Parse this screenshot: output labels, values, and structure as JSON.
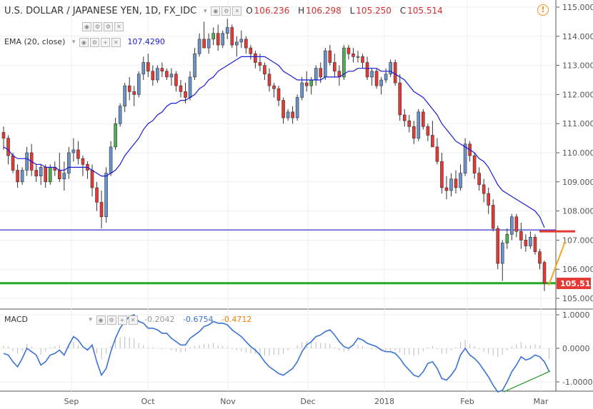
{
  "header": {
    "symbol": "U.S. DOLLAR / JAPANESE YEN, 1D, FX_IDC",
    "o_key": "O",
    "o_val": "106.236",
    "h_key": "H",
    "h_val": "106.298",
    "l_key": "L",
    "l_val": "105.250",
    "c_key": "C",
    "c_val": "105.514"
  },
  "ema": {
    "label": "EMA (20, close)",
    "value": "107.4290",
    "color": "#1a1ad6"
  },
  "macd": {
    "label": "MACD",
    "hist": "-0.2042",
    "macd": "-0.6754",
    "signal": "-0.4712",
    "hist_color": "#999999",
    "macd_color": "#3b73d3",
    "signal_color": "#f57c00"
  },
  "price_badge": "105.514",
  "colors": {
    "up": "#4caf50",
    "down": "#e53935",
    "neutral": "#6a93c9",
    "ema": "#1a1ad6",
    "support": "#22aa22",
    "resistance": "#3333cc",
    "resistance_red": "#e53935",
    "trend_orange": "#f5a623",
    "trend_green": "#229922",
    "badge": "#e53935"
  },
  "icons": {
    "info": "info-icon",
    "toolbar": [
      "eye-icon",
      "gear-icon",
      "close-icon"
    ]
  },
  "chart_data": [
    {
      "type": "candlestick",
      "title": "U.S. DOLLAR / JAPANESE YEN, 1D, FX_IDC",
      "xlabel": "",
      "ylabel": "",
      "x_ticks": [
        "Sep",
        "Oct",
        "Nov",
        "Dec",
        "2018",
        "Feb",
        "Mar"
      ],
      "y_ticks": [
        "105.000",
        "106.000",
        "107.000",
        "108.000",
        "109.000",
        "110.000",
        "111.000",
        "112.000",
        "113.000",
        "114.000",
        "115.000"
      ],
      "ylim": [
        104.7,
        115.2
      ],
      "grid": true,
      "ohlc": [
        [
          110.7,
          110.9,
          110.1,
          110.5
        ],
        [
          110.5,
          110.6,
          109.6,
          109.9
        ],
        [
          109.9,
          110.0,
          109.3,
          109.4
        ],
        [
          109.4,
          109.6,
          108.8,
          109.0
        ],
        [
          109.0,
          109.5,
          108.9,
          109.4
        ],
        [
          109.4,
          110.2,
          109.2,
          110.0
        ],
        [
          110.0,
          110.3,
          109.2,
          109.4
        ],
        [
          109.4,
          109.6,
          109.0,
          109.2
        ],
        [
          109.2,
          109.6,
          108.9,
          109.5
        ],
        [
          109.5,
          109.6,
          108.8,
          109.0
        ],
        [
          109.0,
          109.6,
          108.9,
          109.5
        ],
        [
          109.5,
          109.7,
          109.2,
          109.4
        ],
        [
          109.4,
          110.0,
          109.0,
          109.1
        ],
        [
          109.1,
          109.7,
          108.7,
          109.3
        ],
        [
          109.3,
          110.2,
          109.1,
          110.0
        ],
        [
          110.0,
          110.5,
          109.7,
          110.1
        ],
        [
          110.1,
          110.4,
          109.6,
          109.8
        ],
        [
          109.8,
          109.9,
          109.2,
          109.6
        ],
        [
          109.6,
          109.7,
          109.1,
          109.4
        ],
        [
          109.4,
          109.6,
          108.5,
          108.8
        ],
        [
          108.8,
          109.0,
          108.0,
          108.3
        ],
        [
          108.3,
          108.7,
          107.4,
          107.8
        ],
        [
          107.8,
          109.5,
          107.6,
          109.3
        ],
        [
          109.3,
          110.4,
          109.2,
          110.2
        ],
        [
          110.2,
          111.2,
          110.1,
          111.0
        ],
        [
          111.0,
          111.7,
          110.9,
          111.6
        ],
        [
          111.6,
          112.4,
          111.4,
          112.3
        ],
        [
          112.3,
          112.6,
          111.8,
          112.1
        ],
        [
          112.1,
          112.3,
          111.6,
          112.0
        ],
        [
          112.0,
          112.8,
          111.9,
          112.7
        ],
        [
          112.7,
          113.3,
          112.5,
          113.1
        ],
        [
          113.1,
          113.4,
          112.6,
          112.8
        ],
        [
          112.8,
          113.0,
          112.3,
          112.5
        ],
        [
          112.5,
          113.0,
          112.4,
          112.9
        ],
        [
          112.9,
          113.1,
          112.6,
          112.8
        ],
        [
          112.8,
          112.9,
          112.5,
          112.6
        ],
        [
          112.6,
          112.9,
          112.3,
          112.7
        ],
        [
          112.7,
          112.8,
          112.1,
          112.3
        ],
        [
          112.3,
          112.5,
          111.9,
          112.1
        ],
        [
          112.1,
          112.4,
          111.7,
          111.9
        ],
        [
          111.9,
          112.8,
          111.8,
          112.6
        ],
        [
          112.6,
          113.6,
          112.5,
          113.4
        ],
        [
          113.4,
          114.1,
          113.3,
          113.9
        ],
        [
          113.9,
          114.5,
          113.7,
          113.6
        ],
        [
          113.6,
          114.1,
          113.4,
          113.9
        ],
        [
          113.9,
          114.3,
          113.7,
          114.1
        ],
        [
          114.1,
          114.4,
          113.5,
          113.7
        ],
        [
          113.7,
          114.2,
          113.6,
          114.1
        ],
        [
          114.1,
          114.6,
          113.9,
          114.3
        ],
        [
          114.3,
          114.4,
          113.6,
          113.7
        ],
        [
          113.7,
          114.0,
          113.3,
          113.8
        ],
        [
          113.8,
          114.2,
          113.6,
          113.9
        ],
        [
          113.9,
          114.0,
          113.4,
          113.6
        ],
        [
          113.6,
          113.7,
          113.2,
          113.4
        ],
        [
          113.4,
          113.5,
          112.9,
          113.1
        ],
        [
          113.1,
          113.4,
          112.8,
          113.0
        ],
        [
          113.0,
          113.1,
          112.5,
          112.7
        ],
        [
          112.7,
          112.9,
          112.1,
          112.3
        ],
        [
          112.3,
          112.4,
          111.9,
          112.2
        ],
        [
          112.2,
          112.3,
          111.6,
          111.8
        ],
        [
          111.8,
          111.9,
          111.0,
          111.2
        ],
        [
          111.2,
          111.5,
          111.1,
          111.4
        ],
        [
          111.4,
          111.6,
          111.0,
          111.2
        ],
        [
          111.2,
          112.0,
          111.1,
          111.9
        ],
        [
          111.9,
          112.6,
          111.8,
          112.4
        ],
        [
          112.4,
          112.8,
          112.1,
          112.3
        ],
        [
          112.3,
          112.6,
          112.0,
          112.5
        ],
        [
          112.5,
          113.0,
          112.3,
          112.9
        ],
        [
          112.9,
          113.1,
          112.4,
          112.6
        ],
        [
          112.6,
          113.6,
          112.5,
          113.5
        ],
        [
          113.5,
          113.7,
          113.0,
          113.1
        ],
        [
          113.1,
          113.4,
          112.6,
          112.8
        ],
        [
          112.8,
          113.0,
          112.3,
          112.6
        ],
        [
          112.6,
          113.7,
          112.5,
          113.6
        ],
        [
          113.6,
          113.7,
          113.2,
          113.4
        ],
        [
          113.4,
          113.6,
          113.1,
          113.3
        ],
        [
          113.3,
          113.5,
          113.1,
          113.3
        ],
        [
          113.3,
          113.4,
          112.9,
          113.1
        ],
        [
          113.1,
          113.3,
          112.5,
          112.6
        ],
        [
          112.6,
          112.9,
          112.3,
          112.8
        ],
        [
          112.8,
          112.9,
          112.2,
          112.3
        ],
        [
          112.3,
          112.6,
          112.0,
          112.5
        ],
        [
          112.5,
          112.9,
          112.4,
          112.7
        ],
        [
          112.7,
          113.2,
          112.6,
          113.1
        ],
        [
          113.1,
          113.2,
          112.3,
          112.4
        ],
        [
          112.4,
          112.7,
          111.1,
          111.3
        ],
        [
          111.3,
          111.5,
          110.9,
          111.1
        ],
        [
          111.1,
          111.3,
          110.7,
          110.9
        ],
        [
          110.9,
          111.1,
          110.3,
          110.5
        ],
        [
          110.5,
          111.5,
          110.4,
          111.4
        ],
        [
          111.4,
          111.5,
          110.8,
          110.9
        ],
        [
          110.9,
          111.0,
          110.4,
          110.6
        ],
        [
          110.6,
          111.1,
          110.3,
          110.2
        ],
        [
          110.2,
          110.5,
          109.6,
          109.7
        ],
        [
          109.7,
          110.0,
          108.6,
          108.8
        ],
        [
          108.8,
          109.2,
          108.4,
          108.7
        ],
        [
          108.7,
          109.3,
          108.5,
          109.1
        ],
        [
          109.1,
          109.4,
          108.6,
          108.8
        ],
        [
          108.8,
          109.6,
          108.7,
          109.3
        ],
        [
          109.3,
          110.5,
          109.2,
          110.3
        ],
        [
          110.3,
          110.4,
          109.7,
          109.9
        ],
        [
          109.9,
          110.0,
          109.1,
          109.3
        ],
        [
          109.3,
          109.5,
          108.7,
          108.9
        ],
        [
          108.9,
          109.1,
          108.3,
          108.6
        ],
        [
          108.6,
          108.8,
          107.9,
          108.2
        ],
        [
          108.2,
          108.4,
          107.3,
          107.4
        ],
        [
          107.4,
          107.5,
          106.0,
          106.2
        ],
        [
          106.2,
          107.0,
          105.6,
          106.9
        ],
        [
          106.9,
          107.4,
          106.7,
          107.2
        ],
        [
          107.2,
          107.9,
          107.0,
          107.8
        ],
        [
          107.8,
          107.9,
          107.1,
          107.3
        ],
        [
          107.3,
          107.6,
          106.7,
          107.0
        ],
        [
          107.0,
          107.2,
          106.6,
          106.8
        ],
        [
          106.8,
          107.3,
          106.7,
          107.1
        ],
        [
          107.1,
          107.2,
          106.5,
          106.6
        ],
        [
          106.6,
          106.7,
          106.0,
          106.2
        ],
        [
          106.236,
          106.298,
          105.25,
          105.514
        ]
      ],
      "ema": [
        110.2,
        110.1,
        109.9,
        109.8,
        109.8,
        109.8,
        109.7,
        109.6,
        109.6,
        109.5,
        109.5,
        109.5,
        109.4,
        109.4,
        109.5,
        109.5,
        109.5,
        109.5,
        109.5,
        109.4,
        109.3,
        109.2,
        109.2,
        109.3,
        109.4,
        109.6,
        109.9,
        110.1,
        110.3,
        110.5,
        110.8,
        111.0,
        111.1,
        111.3,
        111.4,
        111.6,
        111.7,
        111.7,
        111.8,
        111.8,
        111.9,
        112.0,
        112.2,
        112.3,
        112.5,
        112.6,
        112.8,
        112.9,
        113.0,
        113.1,
        113.2,
        113.3,
        113.3,
        113.3,
        113.3,
        113.3,
        113.3,
        113.2,
        113.1,
        113.0,
        112.8,
        112.7,
        112.6,
        112.5,
        112.5,
        112.5,
        112.5,
        112.5,
        112.5,
        112.6,
        112.6,
        112.6,
        112.6,
        112.7,
        112.8,
        112.8,
        112.9,
        112.9,
        112.9,
        112.9,
        112.9,
        112.8,
        112.8,
        112.8,
        112.7,
        112.6,
        112.5,
        112.3,
        112.1,
        112.0,
        111.9,
        111.7,
        111.5,
        111.3,
        111.0,
        110.8,
        110.6,
        110.4,
        110.3,
        110.2,
        110.1,
        110.0,
        109.8,
        109.7,
        109.5,
        109.2,
        108.9,
        108.7,
        108.6,
        108.5,
        108.4,
        108.3,
        108.2,
        108.1,
        108.0,
        107.8,
        107.43
      ]
    },
    {
      "type": "line",
      "title": "MACD",
      "y_ticks": [
        "1.0000",
        "0.0000",
        "-1.0000"
      ],
      "ylim": [
        -1.35,
        1.15
      ],
      "macd": [
        -0.15,
        -0.2,
        -0.4,
        -0.55,
        -0.3,
        0.0,
        -0.1,
        -0.2,
        -0.5,
        -0.4,
        -0.2,
        -0.15,
        -0.05,
        -0.2,
        0.1,
        0.35,
        0.25,
        0.05,
        -0.05,
        0.1,
        -0.4,
        -0.8,
        -0.6,
        -0.1,
        0.3,
        0.6,
        0.8,
        0.95,
        1.0,
        0.8,
        0.75,
        0.6,
        0.6,
        0.55,
        0.45,
        0.45,
        0.3,
        0.2,
        0.1,
        0.1,
        0.3,
        0.4,
        0.5,
        0.65,
        0.7,
        0.8,
        0.75,
        0.75,
        0.7,
        0.55,
        0.45,
        0.35,
        0.2,
        0.05,
        -0.05,
        -0.2,
        -0.4,
        -0.55,
        -0.65,
        -0.75,
        -0.8,
        -0.7,
        -0.6,
        -0.4,
        -0.1,
        0.1,
        0.2,
        0.35,
        0.4,
        0.5,
        0.55,
        0.4,
        0.2,
        0.05,
        0.0,
        0.1,
        0.3,
        0.25,
        0.15,
        0.1,
        0.05,
        -0.05,
        -0.1,
        -0.1,
        -0.15,
        -0.3,
        -0.5,
        -0.65,
        -0.8,
        -0.85,
        -0.7,
        -0.45,
        -0.4,
        -0.6,
        -0.9,
        -0.95,
        -0.8,
        -0.6,
        -0.2,
        0.0,
        -0.2,
        -0.3,
        -0.45,
        -0.65,
        -0.85,
        -1.1,
        -1.3,
        -1.25,
        -1.0,
        -0.7,
        -0.5,
        -0.25,
        -0.35,
        -0.3,
        -0.2,
        -0.25,
        -0.4,
        -0.68
      ],
      "signal_end": -0.4712,
      "histogram": [
        0.05,
        0.03,
        -0.05,
        -0.1,
        -0.05,
        0.08,
        0.04,
        0.0,
        -0.12,
        -0.06,
        0.02,
        0.04,
        0.06,
        0.0,
        0.08,
        0.12,
        0.06,
        0.0,
        -0.04,
        0.02,
        -0.1,
        -0.2,
        -0.1,
        0.05,
        0.15,
        0.2,
        0.22,
        0.2,
        0.18,
        0.1,
        0.06,
        0.02,
        0.02,
        0.0,
        -0.02,
        0.0,
        -0.04,
        -0.06,
        -0.08,
        -0.06,
        0.02,
        0.04,
        0.06,
        0.08,
        0.08,
        0.1,
        0.06,
        0.04,
        0.02,
        -0.02,
        -0.04,
        -0.06,
        -0.08,
        -0.1,
        -0.1,
        -0.12,
        -0.14,
        -0.14,
        -0.12,
        -0.12,
        -0.1,
        -0.04,
        0.0,
        0.06,
        0.12,
        0.14,
        0.12,
        0.12,
        0.1,
        0.1,
        0.08,
        0.02,
        -0.04,
        -0.06,
        -0.06,
        0.0,
        0.06,
        0.04,
        0.0,
        -0.02,
        -0.02,
        -0.04,
        -0.04,
        -0.04,
        -0.04,
        -0.08,
        -0.12,
        -0.12,
        -0.14,
        -0.12,
        -0.06,
        0.02,
        0.04,
        -0.02,
        -0.1,
        -0.1,
        -0.04,
        0.02,
        0.12,
        0.16,
        0.08,
        0.04,
        -0.02,
        -0.06,
        -0.1,
        -0.14,
        -0.16,
        -0.12,
        -0.04,
        0.04,
        0.08,
        0.12,
        0.06,
        0.06,
        0.08,
        0.06,
        0.0,
        -0.2
      ]
    }
  ]
}
